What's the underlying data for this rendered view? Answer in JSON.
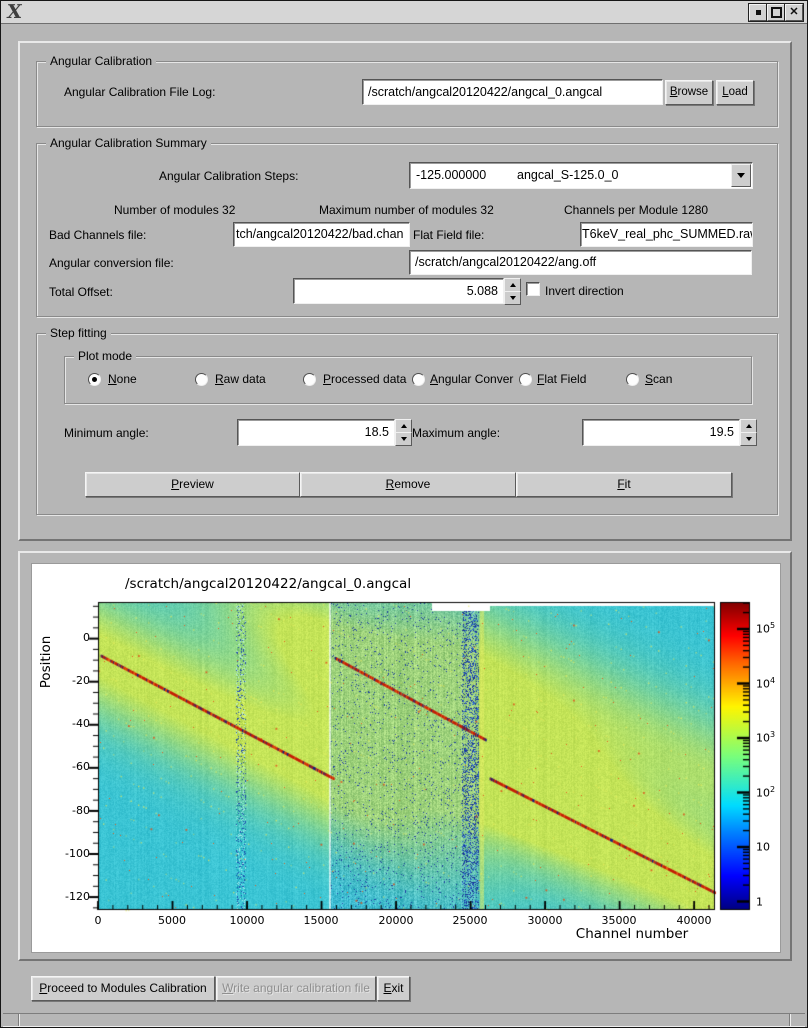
{
  "titlebar": {
    "logo": "X",
    "close_glyph": "✕"
  },
  "calibration": {
    "legend": "Angular Calibration",
    "file_log_label": "Angular Calibration File Log:",
    "file_log_value": "/scratch/angcal20120422/angcal_0.angcal",
    "browse_label": "Browse",
    "load_label": "Load"
  },
  "summary": {
    "legend": "Angular Calibration Summary",
    "steps_label": "Angular Calibration Steps:",
    "steps_value": "-125.000000",
    "steps_name": "angcal_S-125.0_0",
    "num_modules": "Number of modules 32",
    "max_modules": "Maximum number of modules 32",
    "channels_per_module": "Channels per Module 1280",
    "bad_channels_label": "Bad Channels file:",
    "bad_channels_value": "tch/angcal20120422/bad.chan",
    "flat_field_label": "Flat Field file:",
    "flat_field_value": "T6keV_real_phc_SUMMED.raw",
    "ang_conversion_label": "Angular conversion file:",
    "ang_conversion_value": "/scratch/angcal20120422/ang.off",
    "total_offset_label": "Total Offset:",
    "total_offset_value": "5.088",
    "invert_label": "Invert direction"
  },
  "fitting": {
    "legend": "Step fitting",
    "plot_mode_legend": "Plot mode",
    "modes": [
      "None",
      "Raw data",
      "Processed data",
      "Angular Conver",
      "Flat Field",
      "Scan"
    ],
    "selected_mode": "None",
    "min_angle_label": "Minimum angle:",
    "min_angle_value": "18.5",
    "max_angle_label": "Maximum angle:",
    "max_angle_value": "19.5",
    "preview_label": "Preview",
    "remove_label": "Remove",
    "fit_label": "Fit"
  },
  "actions": {
    "proceed_label": "Proceed to Modules Calibration",
    "write_label": "Write angular calibration file",
    "exit_label": "Exit"
  },
  "chart_data": {
    "type": "heatmap",
    "title": "/scratch/angcal20120422/angcal_0.angcal",
    "xlabel": "Channel number",
    "ylabel": "Position",
    "xlim": [
      0,
      41400
    ],
    "ylim": [
      -126,
      17
    ],
    "x_ticks": [
      "0",
      "5000",
      "10000",
      "15000",
      "20000",
      "25000",
      "30000",
      "35000",
      "40000"
    ],
    "x_tick_values": [
      0,
      5000,
      10000,
      15000,
      20000,
      25000,
      30000,
      35000,
      40000
    ],
    "y_ticks": [
      "0",
      "-20",
      "-40",
      "-60",
      "-80",
      "-100",
      "-120"
    ],
    "y_tick_values": [
      0,
      -20,
      -40,
      -60,
      -80,
      -100,
      -120
    ],
    "colorbar": {
      "scale": "log",
      "min": 1,
      "max": 300000,
      "colormap": "jet",
      "ticks": [
        {
          "base": "10",
          "exp": "5"
        },
        {
          "base": "10",
          "exp": "4"
        },
        {
          "base": "10",
          "exp": "3"
        },
        {
          "base": "10",
          "exp": "2"
        },
        {
          "base": "10",
          "exp": ""
        },
        {
          "base": "1",
          "exp": ""
        }
      ]
    },
    "traces": [
      {
        "x": [
          200,
          15800
        ],
        "y": [
          -8,
          -65
        ]
      },
      {
        "x": [
          15900,
          26000
        ],
        "y": [
          -9,
          -47
        ]
      },
      {
        "x": [
          26300,
          41400
        ],
        "y": [
          -65,
          -118
        ]
      }
    ],
    "glow_lines": [
      {
        "x": [
          26300,
          41400
        ],
        "y": [
          -10,
          -63
        ],
        "amp": 0.7
      }
    ],
    "features": {
      "noise_band_1": [
        9200,
        9900
      ],
      "gap_channel": 15500,
      "dark_section": [
        15500,
        25500
      ],
      "noise_band_2": [
        24400,
        25500
      ],
      "yellow_band": [
        25600,
        25900
      ]
    }
  }
}
